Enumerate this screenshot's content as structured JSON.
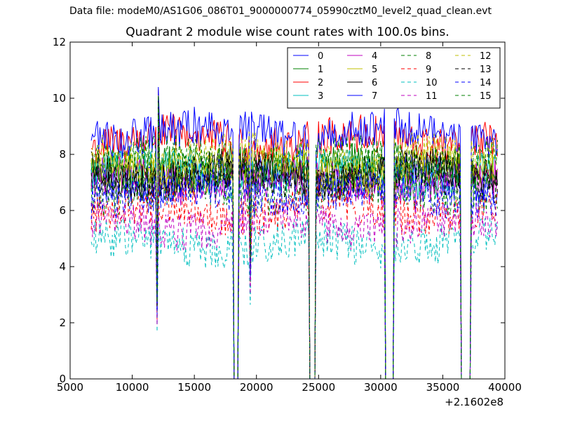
{
  "suptitle": "Data file: modeM0/AS1G06_086T01_9000000774_05990cztM0_level2_quad_clean.evt",
  "chart_data": {
    "type": "line",
    "title": "Quadrant 2 module wise count rates with 100.0s bins.",
    "xlabel": "",
    "ylabel": "",
    "x_offset_label": "+2.1602e8",
    "xlim": [
      5000,
      40000
    ],
    "ylim": [
      0,
      12
    ],
    "x_ticks": [
      5000,
      10000,
      15000,
      20000,
      25000,
      30000,
      35000,
      40000
    ],
    "y_ticks": [
      0,
      2,
      4,
      6,
      8,
      10,
      12
    ],
    "x_range_data": [
      6700,
      39400
    ],
    "bin_width_s": 100,
    "gaps": [
      [
        18200,
        18500
      ],
      [
        24300,
        24700
      ],
      [
        30400,
        31000
      ],
      [
        36500,
        37200
      ]
    ],
    "dips": [
      {
        "x": 12000,
        "level": 0.35
      },
      {
        "x": 19500,
        "level": 0.55
      }
    ],
    "peak": {
      "x": 12100,
      "value": 10.4
    },
    "legend_location": "upper right",
    "series": [
      {
        "name": "0",
        "color": "#0000ff",
        "style": "solid",
        "base": 7.1
      },
      {
        "name": "1",
        "color": "#008000",
        "style": "solid",
        "base": 7.6
      },
      {
        "name": "2",
        "color": "#ff0000",
        "style": "solid",
        "base": 8.5
      },
      {
        "name": "3",
        "color": "#00bfbf",
        "style": "solid",
        "base": 7.3
      },
      {
        "name": "4",
        "color": "#bf00bf",
        "style": "solid",
        "base": 7.0
      },
      {
        "name": "5",
        "color": "#bfbf00",
        "style": "solid",
        "base": 7.4
      },
      {
        "name": "6",
        "color": "#000000",
        "style": "solid",
        "base": 7.3
      },
      {
        "name": "7",
        "color": "#0000ff",
        "style": "solid",
        "base": 8.8
      },
      {
        "name": "8",
        "color": "#008000",
        "style": "dashed",
        "base": 6.7
      },
      {
        "name": "9",
        "color": "#ff0000",
        "style": "dashed",
        "base": 6.0
      },
      {
        "name": "10",
        "color": "#00bfbf",
        "style": "dashed",
        "base": 4.8
      },
      {
        "name": "11",
        "color": "#bf00bf",
        "style": "dashed",
        "base": 5.5
      },
      {
        "name": "12",
        "color": "#bfbf00",
        "style": "dashed",
        "base": 7.9
      },
      {
        "name": "13",
        "color": "#000000",
        "style": "dashed",
        "base": 7.2
      },
      {
        "name": "14",
        "color": "#0000ff",
        "style": "dashed",
        "base": 6.6
      },
      {
        "name": "15",
        "color": "#008000",
        "style": "dashed",
        "base": 7.8
      }
    ]
  }
}
